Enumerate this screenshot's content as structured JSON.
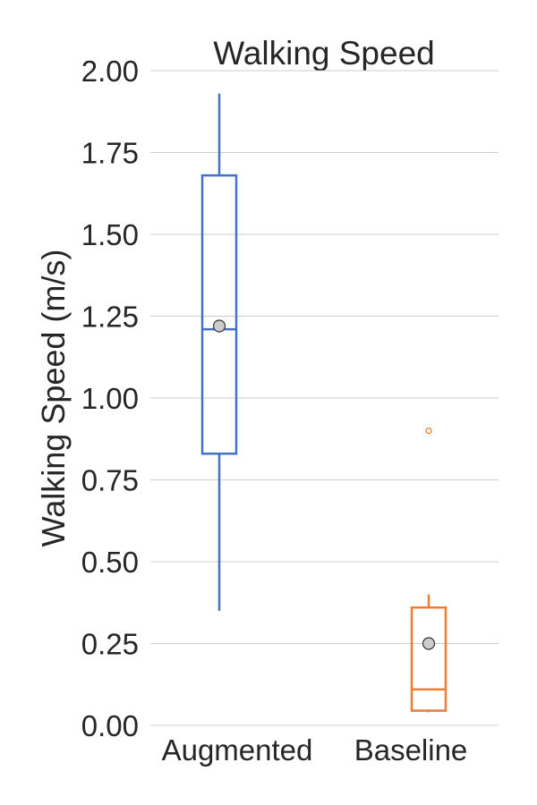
{
  "chart_data": {
    "type": "box",
    "title": "Walking Speed",
    "xlabel": "",
    "ylabel": "Walking Speed (m/s)",
    "ylim": [
      0,
      2.0
    ],
    "yticks": [
      "0.00",
      "0.25",
      "0.50",
      "0.75",
      "1.00",
      "1.25",
      "1.50",
      "1.75",
      "2.00"
    ],
    "grid": true,
    "categories": [
      "Augmented",
      "Baseline"
    ],
    "boxes": [
      {
        "category": "Augmented",
        "color": "#4472c4",
        "whisker_low": 0.35,
        "q1": 0.83,
        "median": 1.21,
        "q3": 1.68,
        "whisker_high": 1.93,
        "mean": 1.22,
        "outliers": []
      },
      {
        "category": "Baseline",
        "color": "#ed7d31",
        "whisker_low": 0.04,
        "q1": 0.045,
        "median": 0.11,
        "q3": 0.36,
        "whisker_high": 0.4,
        "mean": 0.25,
        "outliers": [
          0.9
        ]
      }
    ],
    "mean_marker_color": "#cccccc"
  }
}
